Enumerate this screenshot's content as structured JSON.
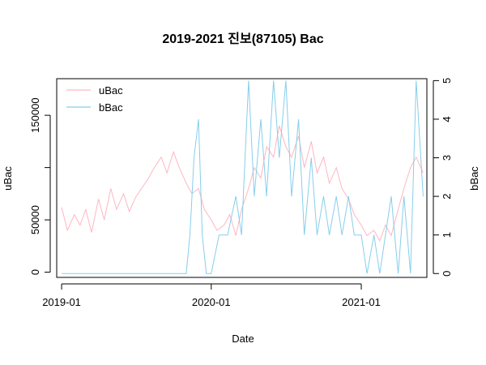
{
  "chart_data": {
    "type": "line",
    "title": "2019-2021 진보(87105) Bac",
    "xlabel": "Date",
    "ylabel_left": "uBac",
    "ylabel_right": "bBac",
    "x_range": [
      "2018-12-20",
      "2021-06-10"
    ],
    "x_ticks": [
      {
        "date": "2019-01-01",
        "label": "2019-01"
      },
      {
        "date": "2020-01-01",
        "label": "2020-01"
      },
      {
        "date": "2021-01-01",
        "label": "2021-01"
      }
    ],
    "y_left_range": [
      -5000,
      185000
    ],
    "y_left_ticks": [
      {
        "value": 0,
        "label": "0"
      },
      {
        "value": 50000,
        "label": "50000"
      },
      {
        "value": 100000,
        "label": ""
      },
      {
        "value": 150000,
        "label": "150000"
      }
    ],
    "y_right_range": [
      -0.1,
      5.05
    ],
    "y_right_ticks": [
      {
        "value": 0,
        "label": "0"
      },
      {
        "value": 1,
        "label": "1"
      },
      {
        "value": 2,
        "label": "2"
      },
      {
        "value": 3,
        "label": "3"
      },
      {
        "value": 4,
        "label": "4"
      },
      {
        "value": 5,
        "label": "5"
      }
    ],
    "legend": {
      "position": "top-left",
      "entries": [
        {
          "name": "uBac",
          "color": "#FFB6C1"
        },
        {
          "name": "bBac",
          "color": "#87CEEB"
        }
      ]
    },
    "series": [
      {
        "name": "uBac",
        "axis": "left",
        "color": "#FFB6C1",
        "points": [
          [
            "2019-01-01",
            62000
          ],
          [
            "2019-01-15",
            40000
          ],
          [
            "2019-02-01",
            55000
          ],
          [
            "2019-02-15",
            45000
          ],
          [
            "2019-03-01",
            60000
          ],
          [
            "2019-03-15",
            38000
          ],
          [
            "2019-04-01",
            70000
          ],
          [
            "2019-04-15",
            50000
          ],
          [
            "2019-05-01",
            80000
          ],
          [
            "2019-05-15",
            60000
          ],
          [
            "2019-06-01",
            75000
          ],
          [
            "2019-06-15",
            58000
          ],
          [
            "2019-07-01",
            72000
          ],
          [
            "2019-07-15",
            80000
          ],
          [
            "2019-08-01",
            90000
          ],
          [
            "2019-08-15",
            100000
          ],
          [
            "2019-09-01",
            110000
          ],
          [
            "2019-09-15",
            95000
          ],
          [
            "2019-10-01",
            115000
          ],
          [
            "2019-10-15",
            100000
          ],
          [
            "2019-11-01",
            85000
          ],
          [
            "2019-11-15",
            75000
          ],
          [
            "2019-12-01",
            80000
          ],
          [
            "2019-12-15",
            60000
          ],
          [
            "2020-01-01",
            50000
          ],
          [
            "2020-01-15",
            40000
          ],
          [
            "2020-02-01",
            45000
          ],
          [
            "2020-02-15",
            55000
          ],
          [
            "2020-03-01",
            35000
          ],
          [
            "2020-03-15",
            60000
          ],
          [
            "2020-04-01",
            80000
          ],
          [
            "2020-04-15",
            100000
          ],
          [
            "2020-05-01",
            90000
          ],
          [
            "2020-05-15",
            120000
          ],
          [
            "2020-06-01",
            110000
          ],
          [
            "2020-06-15",
            140000
          ],
          [
            "2020-07-01",
            120000
          ],
          [
            "2020-07-15",
            110000
          ],
          [
            "2020-08-01",
            130000
          ],
          [
            "2020-08-15",
            100000
          ],
          [
            "2020-09-01",
            125000
          ],
          [
            "2020-09-15",
            95000
          ],
          [
            "2020-10-01",
            110000
          ],
          [
            "2020-10-15",
            85000
          ],
          [
            "2020-11-01",
            100000
          ],
          [
            "2020-11-15",
            80000
          ],
          [
            "2020-12-01",
            70000
          ],
          [
            "2020-12-15",
            55000
          ],
          [
            "2021-01-01",
            45000
          ],
          [
            "2021-01-15",
            35000
          ],
          [
            "2021-02-01",
            40000
          ],
          [
            "2021-02-15",
            30000
          ],
          [
            "2021-03-01",
            45000
          ],
          [
            "2021-03-15",
            35000
          ],
          [
            "2021-04-01",
            60000
          ],
          [
            "2021-04-15",
            80000
          ],
          [
            "2021-05-01",
            100000
          ],
          [
            "2021-05-15",
            110000
          ],
          [
            "2021-06-01",
            95000
          ]
        ]
      },
      {
        "name": "bBac",
        "axis": "right",
        "color": "#87CEEB",
        "points": [
          [
            "2019-01-01",
            0
          ],
          [
            "2019-06-01",
            0
          ],
          [
            "2019-11-01",
            0
          ],
          [
            "2019-11-10",
            1
          ],
          [
            "2019-11-20",
            3
          ],
          [
            "2019-12-01",
            4
          ],
          [
            "2019-12-10",
            1
          ],
          [
            "2019-12-20",
            0
          ],
          [
            "2020-01-01",
            0
          ],
          [
            "2020-01-20",
            1
          ],
          [
            "2020-02-10",
            1
          ],
          [
            "2020-03-01",
            2
          ],
          [
            "2020-03-15",
            1
          ],
          [
            "2020-04-01",
            5
          ],
          [
            "2020-04-15",
            2
          ],
          [
            "2020-05-01",
            4
          ],
          [
            "2020-05-15",
            2
          ],
          [
            "2020-06-01",
            5
          ],
          [
            "2020-06-15",
            3
          ],
          [
            "2020-07-01",
            5
          ],
          [
            "2020-07-15",
            2
          ],
          [
            "2020-08-01",
            4
          ],
          [
            "2020-08-15",
            1
          ],
          [
            "2020-09-01",
            3
          ],
          [
            "2020-09-15",
            1
          ],
          [
            "2020-10-01",
            2
          ],
          [
            "2020-10-15",
            1
          ],
          [
            "2020-11-01",
            2
          ],
          [
            "2020-11-15",
            1
          ],
          [
            "2020-12-01",
            2
          ],
          [
            "2020-12-15",
            1
          ],
          [
            "2021-01-01",
            1
          ],
          [
            "2021-01-15",
            0
          ],
          [
            "2021-02-01",
            1
          ],
          [
            "2021-02-15",
            0
          ],
          [
            "2021-03-01",
            1
          ],
          [
            "2021-03-15",
            2
          ],
          [
            "2021-04-01",
            0
          ],
          [
            "2021-04-15",
            2
          ],
          [
            "2021-05-01",
            0
          ],
          [
            "2021-05-15",
            5
          ],
          [
            "2021-06-01",
            2
          ]
        ]
      }
    ]
  }
}
